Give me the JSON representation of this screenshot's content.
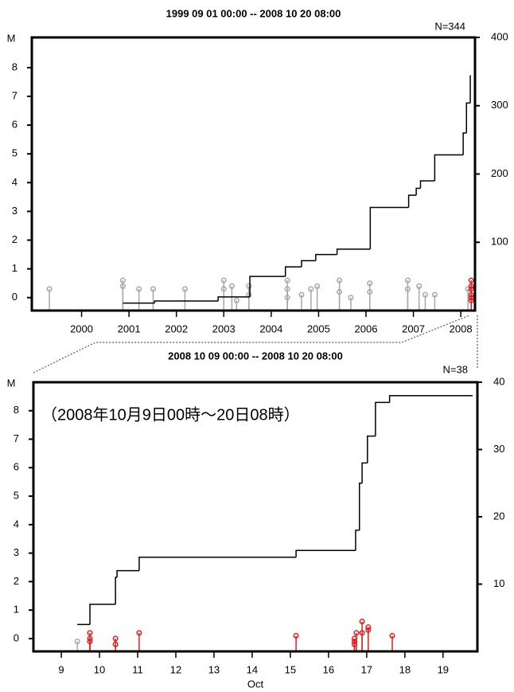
{
  "chart_data": [
    {
      "type": "stem",
      "title": "1999 09 01 00:00 -- 2008 10 20 08:00",
      "annotation": "N=344",
      "ylabel": "M",
      "xlim": [
        1999.45,
        2008.8
      ],
      "xticks": [
        {
          "value": 2000.5,
          "label": "2000"
        },
        {
          "value": 2001.5,
          "label": "2001"
        },
        {
          "value": 2002.5,
          "label": "2002"
        },
        {
          "value": 2003.5,
          "label": "2003"
        },
        {
          "value": 2004.5,
          "label": "2004"
        },
        {
          "value": 2005.5,
          "label": "2005"
        },
        {
          "value": 2006.5,
          "label": "2006"
        },
        {
          "value": 2007.5,
          "label": "2007"
        },
        {
          "value": 2008.5,
          "label": "2008"
        }
      ],
      "ylim": [
        -0.45,
        9.05
      ],
      "yticks": [
        0,
        1,
        2,
        3,
        4,
        5,
        6,
        7,
        8
      ],
      "y2lim": [
        0,
        400
      ],
      "y2ticks": [
        100,
        200,
        300,
        400
      ],
      "series": [
        {
          "color": "#a8a8a8",
          "x": [
            1999.82,
            2001.37,
            2001.37,
            2001.71,
            2002.01,
            2002.68,
            2003.5,
            2003.5,
            2003.67,
            2003.77,
            2004.03,
            2004.03,
            2004.84,
            2004.84,
            2004.84,
            2005.14,
            2005.34,
            2005.47,
            2005.94,
            2005.94,
            2006.18,
            2006.58,
            2006.58,
            2007.38,
            2007.38,
            2007.62,
            2007.75,
            2007.95,
            2008.65
          ],
          "values": [
            0.3,
            0.6,
            0.4,
            0.3,
            0.3,
            0.3,
            0.6,
            0.3,
            0.4,
            -0.1,
            0.4,
            0.1,
            0.6,
            0.3,
            0.0,
            0.1,
            0.3,
            0.4,
            0.6,
            0.2,
            0.0,
            0.5,
            0.2,
            0.6,
            0.3,
            0.4,
            0.1,
            0.1,
            0.3
          ]
        },
        {
          "color": "#e02020",
          "x": [
            2008.72,
            2008.72,
            2008.72,
            2008.72,
            2008.72,
            2008.72
          ],
          "values": [
            0.6,
            0.4,
            0.3,
            0.1,
            0.0,
            -0.1
          ]
        },
        {
          "color": "#000000",
          "axis": "y2",
          "drawstyle": "steps-post",
          "x": [
            2001.37,
            2002.04,
            2003.38,
            2004.05,
            2004.8,
            2005.14,
            2005.44,
            2005.89,
            2006.59,
            2007.4,
            2007.56,
            2007.65,
            2007.95,
            2008.55,
            2008.62,
            2008.7
          ],
          "values": [
            11,
            14,
            20,
            50,
            64,
            73,
            82,
            90,
            151,
            169,
            179,
            190,
            228,
            260,
            304,
            344
          ]
        }
      ]
    },
    {
      "type": "stem",
      "title": "2008 10 09 00:00 -- 2008 10 20 08:00",
      "annotation": "N=38",
      "ylabel": "M",
      "xlabel": "Oct",
      "note": "（2008年10月9日00時～20日08時）",
      "xlim": [
        8.77,
        20.4
      ],
      "xticks": [
        {
          "value": 9.5,
          "label": "9"
        },
        {
          "value": 10.5,
          "label": "10"
        },
        {
          "value": 11.5,
          "label": "11"
        },
        {
          "value": 12.5,
          "label": "12"
        },
        {
          "value": 13.5,
          "label": "13"
        },
        {
          "value": 14.5,
          "label": "14"
        },
        {
          "value": 15.5,
          "label": "15"
        },
        {
          "value": 16.5,
          "label": "16"
        },
        {
          "value": 17.5,
          "label": "17"
        },
        {
          "value": 18.5,
          "label": "18"
        },
        {
          "value": 19.5,
          "label": "19"
        }
      ],
      "ylim": [
        -0.45,
        9.0
      ],
      "yticks": [
        0,
        1,
        2,
        3,
        4,
        5,
        6,
        7,
        8
      ],
      "y2lim": [
        0,
        40
      ],
      "y2ticks": [
        10,
        20,
        30,
        40
      ],
      "series": [
        {
          "color": "#a8a8a8",
          "x": [
            9.92
          ],
          "values": [
            -0.1
          ]
        },
        {
          "color": "#e02020",
          "x": [
            10.25,
            10.25,
            10.25,
            10.92,
            10.92,
            11.54,
            15.65,
            17.18,
            17.18,
            17.18,
            17.23,
            17.38,
            17.38,
            17.54,
            17.54,
            18.17
          ],
          "values": [
            0.2,
            0.0,
            -0.1,
            0.0,
            -0.2,
            0.2,
            0.1,
            0.0,
            -0.1,
            -0.2,
            0.2,
            0.6,
            0.2,
            0.4,
            0.3,
            0.1
          ]
        },
        {
          "color": "#000000",
          "axis": "y2",
          "drawstyle": "steps-post",
          "x": [
            9.92,
            10.25,
            10.92,
            10.96,
            11.54,
            15.65,
            17.21,
            17.31,
            17.38,
            17.52,
            17.73,
            18.1
          ],
          "values": [
            4,
            7,
            11,
            12,
            14,
            15,
            18,
            25,
            28,
            32,
            37,
            38
          ]
        }
      ]
    }
  ]
}
